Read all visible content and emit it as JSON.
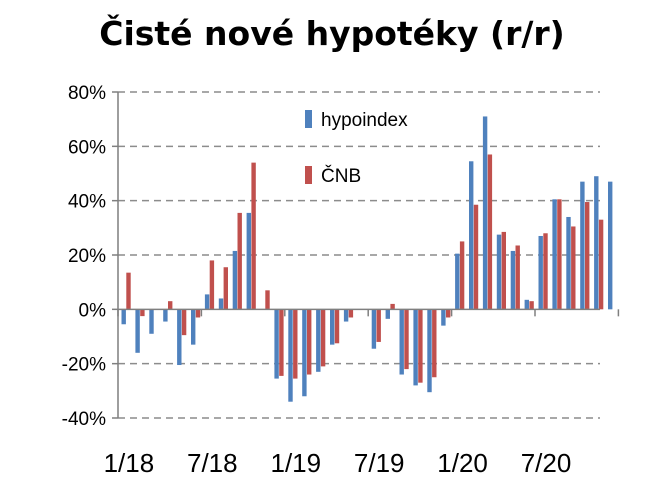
{
  "chart_data": {
    "type": "bar",
    "title": "Čisté nové hypotéky (r/r)",
    "xlabel": "",
    "ylabel": "",
    "ylim": [
      -40,
      80
    ],
    "yticks": [
      -40,
      -20,
      0,
      20,
      40,
      60,
      80
    ],
    "ytick_labels": [
      "-40%",
      "-20%",
      "0%",
      "20%",
      "40%",
      "60%",
      "80%"
    ],
    "x_tick_labels": [
      {
        "label": "1/18",
        "index": 0
      },
      {
        "label": "7/18",
        "index": 6
      },
      {
        "label": "1/19",
        "index": 12
      },
      {
        "label": "7/19",
        "index": 18
      },
      {
        "label": "1/20",
        "index": 24
      },
      {
        "label": "7/20",
        "index": 30
      }
    ],
    "grid": "horizontal-dashed",
    "legend_position": "top-center",
    "series": [
      {
        "name": "hypoindex",
        "color": "#4f81bd",
        "values": [
          -5.5,
          -16,
          -9,
          -4.5,
          -20.5,
          -13,
          5.5,
          4,
          21.5,
          35.5,
          null,
          -25.5,
          -34,
          -32,
          -23,
          -13,
          -4.5,
          null,
          -14.5,
          -3.5,
          -24,
          -28,
          -30.5,
          -6,
          20.5,
          54.5,
          71,
          27.5,
          21.5,
          3.5,
          27,
          40.5,
          34,
          47,
          49,
          47
        ]
      },
      {
        "name": "ČNB",
        "color": "#c0504d",
        "values": [
          13.5,
          -2.5,
          null,
          3,
          -9.5,
          -3,
          18,
          15.5,
          35.5,
          54,
          7,
          -24.5,
          -25.5,
          -24,
          -21,
          -12.5,
          -3,
          null,
          -12,
          2,
          -22,
          -27,
          -25,
          -3,
          25,
          38.5,
          57,
          28.5,
          23.5,
          3,
          28,
          40.5,
          30.5,
          39.5,
          33,
          null
        ]
      }
    ]
  }
}
